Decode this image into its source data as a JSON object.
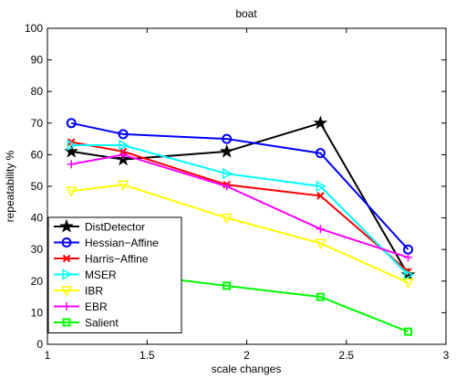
{
  "chart_data": {
    "type": "line",
    "title": "boat",
    "xlabel": "scale changes",
    "ylabel": "repeatability %",
    "xlim": [
      1,
      3
    ],
    "ylim": [
      0,
      100
    ],
    "x_ticks": [
      "1",
      "1.5",
      "2",
      "2.5",
      "3"
    ],
    "y_ticks": [
      "0",
      "10",
      "20",
      "30",
      "40",
      "50",
      "60",
      "70",
      "80",
      "90",
      "100"
    ],
    "x_tick_values": [
      1,
      1.5,
      2,
      2.5,
      3
    ],
    "y_tick_values": [
      0,
      10,
      20,
      30,
      40,
      50,
      60,
      70,
      80,
      90,
      100
    ],
    "grid": false,
    "legend_position": "bottom-left",
    "series": [
      {
        "name": "DistDetector",
        "color": "#000000",
        "marker": "star",
        "x": [
          1.12,
          1.38,
          1.9,
          2.37,
          2.81
        ],
        "y": [
          61,
          58.5,
          61,
          70,
          22
        ]
      },
      {
        "name": "Hessian−Affine",
        "color": "#0000ff",
        "marker": "circle",
        "x": [
          1.12,
          1.38,
          1.9,
          2.37,
          2.81
        ],
        "y": [
          70,
          66.5,
          65,
          60.5,
          30
        ]
      },
      {
        "name": "Harris−Affine",
        "color": "#ff0000",
        "marker": "x",
        "x": [
          1.12,
          1.38,
          1.9,
          2.37,
          2.81
        ],
        "y": [
          64,
          61,
          50.5,
          47,
          23
        ]
      },
      {
        "name": "MSER",
        "color": "#00ffff",
        "marker": "triangle-right",
        "x": [
          1.12,
          1.38,
          1.9,
          2.37,
          2.81
        ],
        "y": [
          63,
          63,
          54,
          50,
          22
        ]
      },
      {
        "name": "IBR",
        "color": "#ffff00",
        "marker": "triangle-down",
        "x": [
          1.12,
          1.38,
          1.9,
          2.37,
          2.81
        ],
        "y": [
          48.5,
          50.5,
          40,
          32,
          19.5
        ]
      },
      {
        "name": "EBR",
        "color": "#ff00ff",
        "marker": "plus",
        "x": [
          1.12,
          1.38,
          1.9,
          2.37,
          2.81
        ],
        "y": [
          57,
          60,
          50,
          36.5,
          27.5
        ]
      },
      {
        "name": "Salient",
        "color": "#00ff00",
        "marker": "square",
        "x": [
          1.12,
          1.38,
          1.9,
          2.37,
          2.81
        ],
        "y": [
          22.5,
          22.5,
          18.5,
          15,
          4
        ]
      }
    ]
  }
}
